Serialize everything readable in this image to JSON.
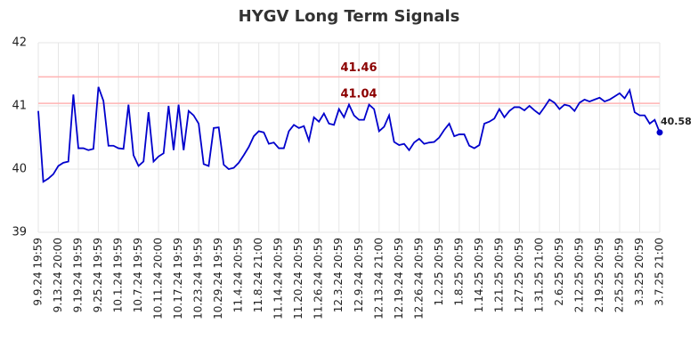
{
  "chart_data": {
    "type": "line",
    "title": "HYGV Long Term Signals",
    "categories": [
      "9.9.24 19:59",
      null,
      null,
      null,
      "9.13.24 20:00",
      null,
      null,
      null,
      "9.19.24 19:59",
      null,
      null,
      null,
      "9.25.24 19:59",
      null,
      null,
      null,
      "10.1.24 19:59",
      null,
      null,
      null,
      "10.7.24 19:59",
      null,
      null,
      null,
      "10.11.24 20:00",
      null,
      null,
      null,
      "10.17.24 19:59",
      null,
      null,
      null,
      "10.23.24 19:59",
      null,
      null,
      null,
      "10.29.24 19:59",
      null,
      null,
      null,
      "11.4.24 20:59",
      null,
      null,
      null,
      "11.8.24 21:00",
      null,
      null,
      null,
      "11.14.24 20:59",
      null,
      null,
      null,
      "11.20.24 20:59",
      null,
      null,
      null,
      "11.26.24 20:59",
      null,
      null,
      null,
      "12.3.24 20:59",
      null,
      null,
      null,
      "12.9.24 20:59",
      null,
      null,
      null,
      "12.13.24 21:00",
      null,
      null,
      null,
      "12.19.24 20:59",
      null,
      null,
      null,
      "12.26.24 20:59",
      null,
      null,
      null,
      "1.2.25 20:59",
      null,
      null,
      null,
      "1.8.25 20:59",
      null,
      null,
      null,
      "1.14.25 20:59",
      null,
      null,
      null,
      "1.21.25 20:59",
      null,
      null,
      null,
      "1.27.25 20:59",
      null,
      null,
      null,
      "1.31.25 21:00",
      null,
      null,
      null,
      "2.6.25 20:59",
      null,
      null,
      null,
      "2.12.25 20:59",
      null,
      null,
      null,
      "2.19.25 20:59",
      null,
      null,
      null,
      "2.25.25 20:59",
      null,
      null,
      null,
      "3.3.25 20:59",
      null,
      null,
      null,
      "3.7.25 21:00"
    ],
    "values": [
      40.92,
      39.8,
      39.85,
      39.92,
      40.05,
      40.1,
      40.12,
      41.18,
      40.33,
      40.33,
      40.3,
      40.32,
      41.3,
      41.08,
      40.37,
      40.37,
      40.33,
      40.32,
      41.02,
      40.22,
      40.05,
      40.12,
      40.9,
      40.12,
      40.2,
      40.25,
      41.0,
      40.3,
      41.02,
      40.3,
      40.92,
      40.85,
      40.72,
      40.08,
      40.05,
      40.65,
      40.66,
      40.07,
      40.0,
      40.02,
      40.1,
      40.22,
      40.35,
      40.52,
      40.6,
      40.58,
      40.4,
      40.42,
      40.33,
      40.33,
      40.6,
      40.7,
      40.65,
      40.68,
      40.45,
      40.82,
      40.75,
      40.88,
      40.72,
      40.7,
      40.95,
      40.82,
      41.02,
      40.85,
      40.78,
      40.78,
      41.02,
      40.95,
      40.6,
      40.67,
      40.85,
      40.43,
      40.38,
      40.4,
      40.3,
      40.42,
      40.48,
      40.4,
      40.42,
      40.43,
      40.5,
      40.62,
      40.72,
      40.52,
      40.55,
      40.55,
      40.37,
      40.33,
      40.38,
      40.72,
      40.75,
      40.8,
      40.95,
      40.82,
      40.92,
      40.98,
      40.98,
      40.93,
      41.0,
      40.93,
      40.87,
      40.98,
      41.1,
      41.05,
      40.95,
      41.02,
      41.0,
      40.92,
      41.05,
      41.1,
      41.07,
      41.1,
      41.13,
      41.07,
      41.1,
      41.15,
      41.2,
      41.12,
      41.25,
      40.9,
      40.85,
      40.85,
      40.72,
      40.78,
      40.58
    ],
    "color": "#0000cc",
    "ylim": [
      39,
      42
    ],
    "yticks": [
      39,
      40,
      41,
      42
    ],
    "grid": true,
    "hlines": [
      41.46,
      41.04
    ],
    "hline_color": "#ffb3b3",
    "hline_label_color": "#8b0000"
  }
}
